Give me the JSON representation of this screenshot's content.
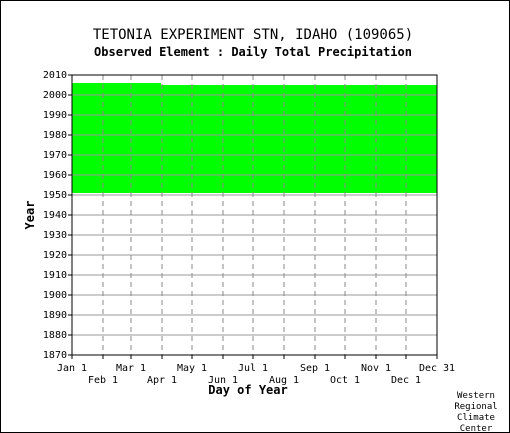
{
  "chart_data": {
    "type": "heatmap",
    "title": "TETONIA EXPERIMENT STN, IDAHO   (109065)",
    "subtitle": "Observed Element : Daily Total Precipitation",
    "xlabel": "Day of Year",
    "ylabel": "Year",
    "ylim": [
      1870,
      2010
    ],
    "yticks": [
      1870,
      1880,
      1890,
      1900,
      1910,
      1920,
      1930,
      1940,
      1950,
      1960,
      1970,
      1980,
      1990,
      2000,
      2010
    ],
    "xlim": [
      1,
      366
    ],
    "xticks_top": [
      {
        "label": "Jan 1",
        "day": 1
      },
      {
        "label": "Mar 1",
        "day": 60
      },
      {
        "label": "May 1",
        "day": 121
      },
      {
        "label": "Jul 1",
        "day": 182
      },
      {
        "label": "Sep 1",
        "day": 244
      },
      {
        "label": "Nov 1",
        "day": 305
      },
      {
        "label": "Dec 31",
        "day": 366
      }
    ],
    "xticks_bottom": [
      {
        "label": "Feb 1",
        "day": 32
      },
      {
        "label": "Apr 1",
        "day": 91
      },
      {
        "label": "Jun 1",
        "day": 152
      },
      {
        "label": "Aug 1",
        "day": 213
      },
      {
        "label": "Oct 1",
        "day": 274
      },
      {
        "label": "Dec 1",
        "day": 335
      }
    ],
    "grid": true,
    "data_color": "#00ff00",
    "data_coverage": {
      "start_year": 1951,
      "end_year": 2006,
      "note_free": true
    },
    "data_blocks": [
      {
        "day_start": 1,
        "day_end": 366,
        "year_start": 1951,
        "year_end": 2005
      },
      {
        "day_start": 1,
        "day_end": 60,
        "year_start": 2005,
        "year_end": 2006
      },
      {
        "day_start": 60,
        "day_end": 90,
        "year_start": 2005,
        "year_end": 2006
      }
    ]
  },
  "credit": {
    "line1": "Western",
    "line2": "Regional",
    "line3": "Climate",
    "line4": "Center"
  }
}
